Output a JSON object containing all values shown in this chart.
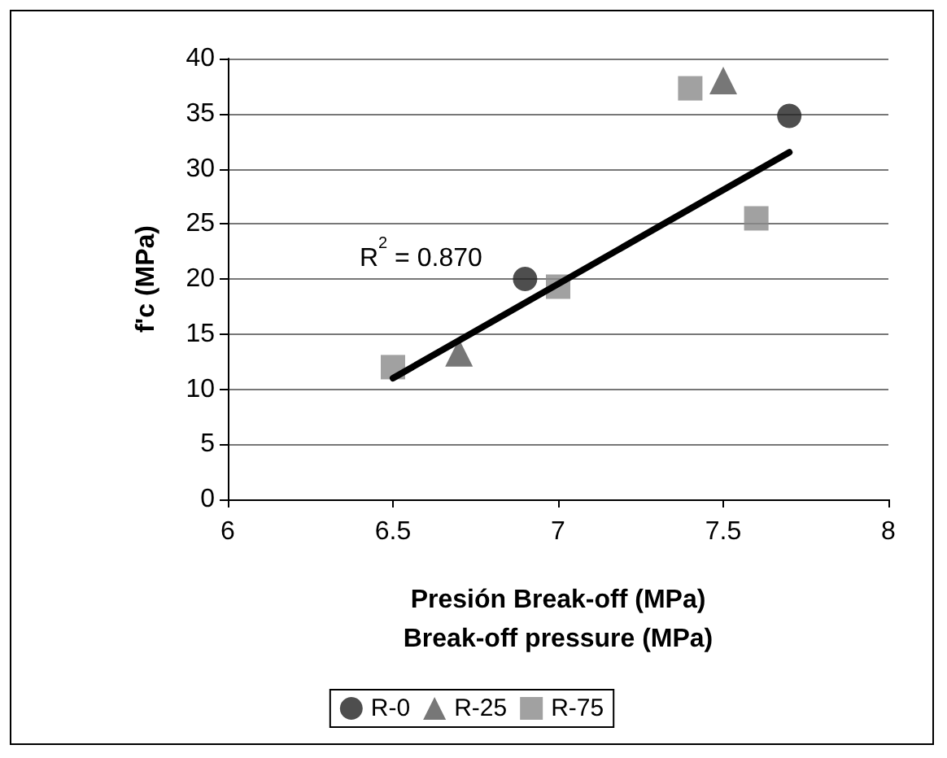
{
  "chart_data": {
    "type": "scatter",
    "xlabel": "Presión Break-off (MPa)\nBreak-off pressure (MPa)",
    "ylabel": "f'c (MPa)",
    "xlim": [
      6,
      8
    ],
    "xticks": [
      6,
      6.5,
      7,
      7.5,
      8
    ],
    "ylim": [
      0,
      40
    ],
    "yticks": [
      0,
      5,
      10,
      15,
      20,
      25,
      30,
      35,
      40
    ],
    "grid": "y",
    "legend": "bottom",
    "annotations": [
      "R$^{2}$ = 0.870"
    ],
    "series": [
      {
        "name": "R-0",
        "color": "#222222",
        "marker": "circle",
        "x": [
          6.9,
          7.7
        ],
        "values": [
          20,
          34.8
        ]
      },
      {
        "name": "R-25",
        "color": "#555555",
        "marker": "triangle",
        "x": [
          6.7,
          7.5
        ],
        "values": [
          13.3,
          38
        ]
      },
      {
        "name": "R-75",
        "color": "#8a8a8a",
        "marker": "square",
        "x": [
          6.5,
          7.0,
          7.4,
          7.6
        ],
        "values": [
          12,
          19.3,
          37.3,
          25.5
        ]
      },
      {
        "type": "line",
        "color": "#000000",
        "marker": "none",
        "x": [
          6.5,
          7.7
        ],
        "values": [
          11,
          31.5
        ]
      }
    ]
  }
}
